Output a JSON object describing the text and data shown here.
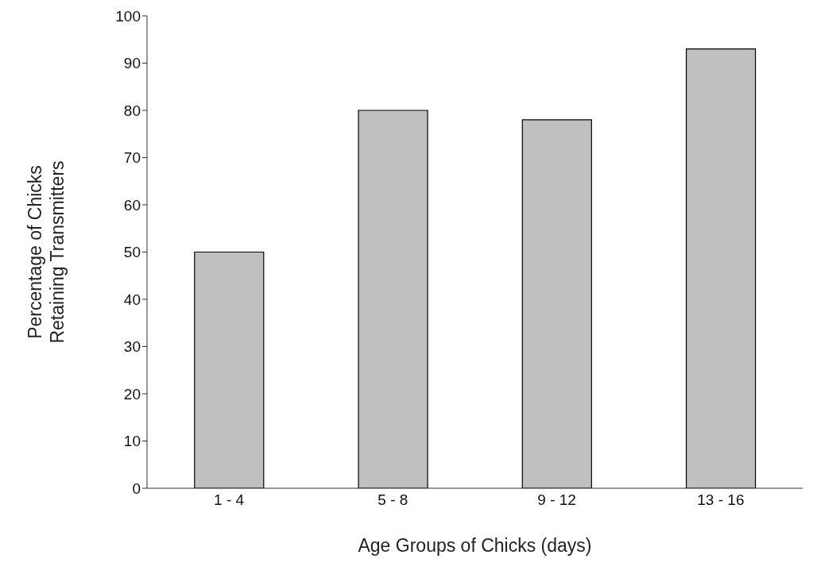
{
  "chart_data": {
    "type": "bar",
    "xlabel": "Age Groups of Chicks (days)",
    "ylabel": "Percentage of Chicks Retaining Transmitters",
    "categories": [
      "1 - 4",
      "5 - 8",
      "9 - 12",
      "13 - 16"
    ],
    "values": [
      50,
      80,
      78,
      93
    ],
    "color": "#c0c0c0",
    "ylim": [
      0,
      100
    ],
    "yticks": [
      0,
      10,
      20,
      30,
      40,
      50,
      60,
      70,
      80,
      90,
      100
    ],
    "grid": false,
    "legend": false
  }
}
